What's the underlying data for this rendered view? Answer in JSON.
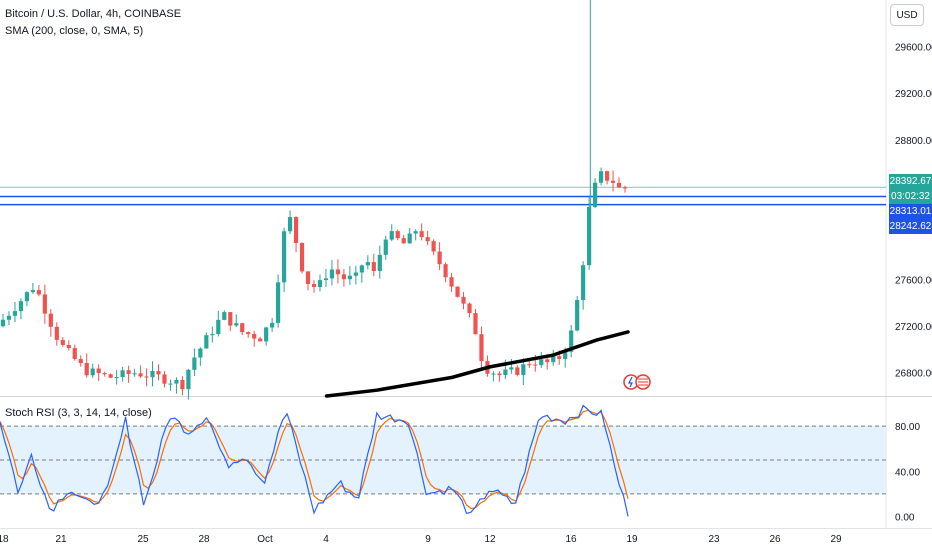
{
  "legend": {
    "symbol": "Bitcoin / U.S. Dollar, 4h, COINBASE",
    "sma": "SMA (200, close, 0, SMA, 5)",
    "rsi": "Stoch RSI (3, 3, 14, 14, close)"
  },
  "currency": "USD",
  "price_tags": {
    "last": "28392.67",
    "countdown": "03:02:32",
    "level_upper": "28313.01",
    "level_lower": "28242.62"
  },
  "colors": {
    "up": "#26a69a",
    "down": "#ef5350",
    "level": "#1e53e5",
    "sma": "#000000",
    "k_line": "#2962ff",
    "d_line": "#ff6d00",
    "rsi_band": "#e3f2fd"
  },
  "chart_data": [
    {
      "type": "candlestick",
      "title": "Bitcoin / U.S. Dollar, 4h, COINBASE",
      "x_tick_labels": [
        "18",
        "21",
        "25",
        "28",
        "Oct",
        "4",
        "9",
        "12",
        "16",
        "19",
        "23",
        "26",
        "29"
      ],
      "y_tick_labels": [
        "29600.00",
        "29200.00",
        "28800.00",
        "27600.00",
        "27200.00",
        "26800.00"
      ],
      "ylim": [
        26600,
        30000
      ],
      "horizontal_levels": [
        28313.01,
        28242.62
      ],
      "last_price": 28392.67,
      "anchors": [
        {
          "x": 0,
          "price": 27200
        },
        {
          "x": 0.06,
          "price": 27550
        },
        {
          "x": 0.1,
          "price": 27050
        },
        {
          "x": 0.14,
          "price": 26820
        },
        {
          "x": 0.18,
          "price": 26760
        },
        {
          "x": 0.22,
          "price": 26800
        },
        {
          "x": 0.26,
          "price": 26760
        },
        {
          "x": 0.295,
          "price": 26700
        },
        {
          "x": 0.31,
          "price": 26900
        },
        {
          "x": 0.335,
          "price": 27100
        },
        {
          "x": 0.36,
          "price": 27300
        },
        {
          "x": 0.39,
          "price": 27150
        },
        {
          "x": 0.42,
          "price": 27100
        },
        {
          "x": 0.44,
          "price": 27280
        },
        {
          "x": 0.455,
          "price": 27950
        },
        {
          "x": 0.465,
          "price": 28150
        },
        {
          "x": 0.48,
          "price": 27850
        },
        {
          "x": 0.49,
          "price": 27600
        },
        {
          "x": 0.51,
          "price": 27520
        },
        {
          "x": 0.53,
          "price": 27700
        },
        {
          "x": 0.555,
          "price": 27600
        },
        {
          "x": 0.575,
          "price": 27620
        },
        {
          "x": 0.585,
          "price": 27800
        },
        {
          "x": 0.6,
          "price": 27650
        },
        {
          "x": 0.62,
          "price": 28000
        },
        {
          "x": 0.65,
          "price": 27900
        },
        {
          "x": 0.67,
          "price": 28050
        },
        {
          "x": 0.69,
          "price": 27850
        },
        {
          "x": 0.71,
          "price": 27700
        },
        {
          "x": 0.74,
          "price": 27400
        },
        {
          "x": 0.76,
          "price": 27200
        },
        {
          "x": 0.775,
          "price": 26850
        },
        {
          "x": 0.8,
          "price": 26780
        },
        {
          "x": 0.83,
          "price": 26820
        },
        {
          "x": 0.85,
          "price": 26900
        },
        {
          "x": 0.88,
          "price": 26880
        },
        {
          "x": 0.9,
          "price": 26950
        },
        {
          "x": 0.915,
          "price": 27150
        },
        {
          "x": 0.93,
          "price": 27600
        },
        {
          "x": 0.945,
          "price": 28300
        },
        {
          "x": 0.96,
          "price": 28500
        },
        {
          "x": 0.98,
          "price": 28450
        },
        {
          "x": 0.995,
          "price": 28350
        },
        {
          "x": 1.0,
          "price": 28392.67
        }
      ],
      "sma": {
        "name": "SMA (200, close, 0, SMA, 5)",
        "points": [
          {
            "x": 0.52,
            "price": 26600
          },
          {
            "x": 0.6,
            "price": 26650
          },
          {
            "x": 0.72,
            "price": 26760
          },
          {
            "x": 0.78,
            "price": 26850
          },
          {
            "x": 0.88,
            "price": 26950
          },
          {
            "x": 0.95,
            "price": 27080
          },
          {
            "x": 1.0,
            "price": 27150
          }
        ]
      },
      "spike": {
        "price_high": 30000,
        "at_x": 0.94
      }
    },
    {
      "type": "line",
      "title": "Stoch RSI (3, 3, 14, 14, close)",
      "y_tick_labels": [
        "80.00",
        "40.00",
        "0.00"
      ],
      "ylim": [
        -5,
        105
      ],
      "band": [
        20,
        80
      ],
      "mid": 50,
      "k_anchors": [
        {
          "x": 0,
          "v": 85
        },
        {
          "x": 0.03,
          "v": 20
        },
        {
          "x": 0.05,
          "v": 55
        },
        {
          "x": 0.08,
          "v": 5
        },
        {
          "x": 0.11,
          "v": 25
        },
        {
          "x": 0.14,
          "v": 10
        },
        {
          "x": 0.17,
          "v": 20
        },
        {
          "x": 0.2,
          "v": 85
        },
        {
          "x": 0.23,
          "v": 10
        },
        {
          "x": 0.27,
          "v": 90
        },
        {
          "x": 0.3,
          "v": 75
        },
        {
          "x": 0.33,
          "v": 90
        },
        {
          "x": 0.36,
          "v": 45
        },
        {
          "x": 0.39,
          "v": 55
        },
        {
          "x": 0.42,
          "v": 30
        },
        {
          "x": 0.455,
          "v": 95
        },
        {
          "x": 0.5,
          "v": 5
        },
        {
          "x": 0.54,
          "v": 30
        },
        {
          "x": 0.57,
          "v": 15
        },
        {
          "x": 0.6,
          "v": 90
        },
        {
          "x": 0.65,
          "v": 85
        },
        {
          "x": 0.68,
          "v": 20
        },
        {
          "x": 0.72,
          "v": 25
        },
        {
          "x": 0.75,
          "v": 0
        },
        {
          "x": 0.78,
          "v": 25
        },
        {
          "x": 0.82,
          "v": 10
        },
        {
          "x": 0.86,
          "v": 90
        },
        {
          "x": 0.9,
          "v": 85
        },
        {
          "x": 0.93,
          "v": 95
        },
        {
          "x": 0.96,
          "v": 90
        },
        {
          "x": 0.98,
          "v": 40
        },
        {
          "x": 1.0,
          "v": 2
        }
      ]
    }
  ]
}
